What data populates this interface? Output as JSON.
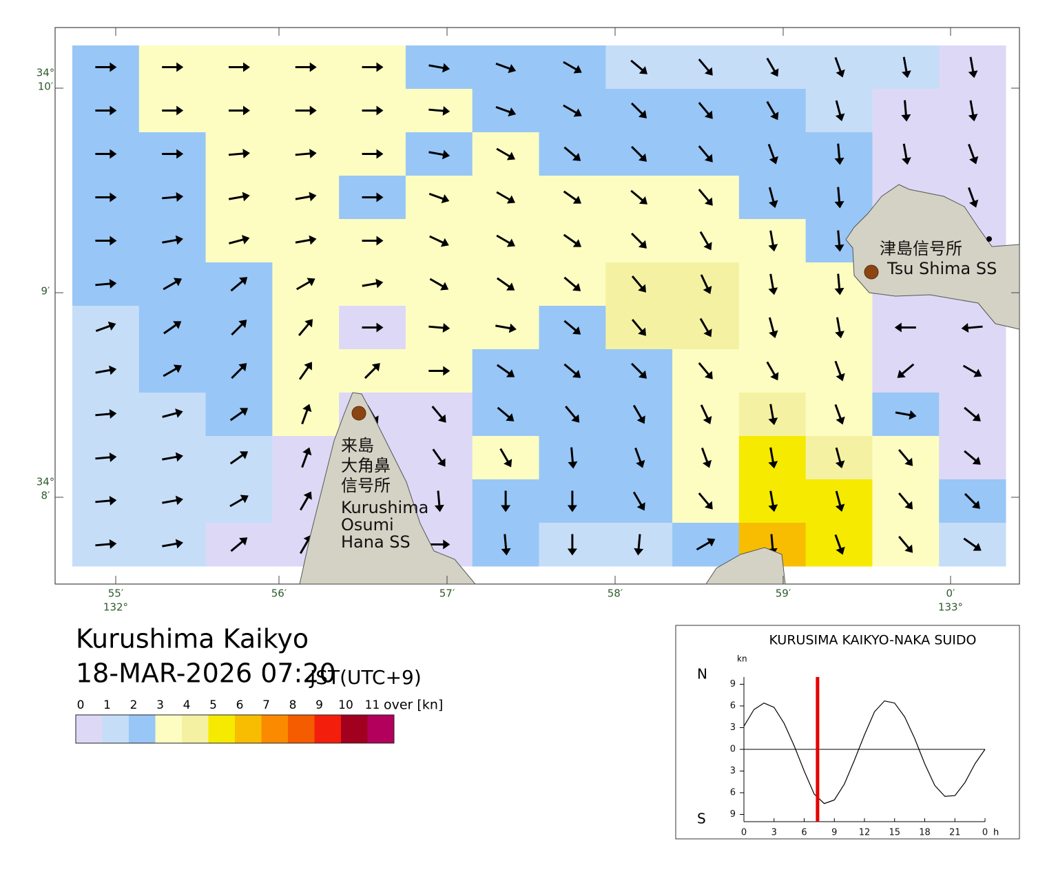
{
  "title": "Kurushima Kaikyo",
  "datetime": "18-MAR-2026 07:20",
  "timezone": "JST(UTC+9)",
  "legend": {
    "ticks": [
      0,
      1,
      2,
      3,
      4,
      5,
      6,
      7,
      8,
      9,
      10,
      11
    ],
    "over": "over [kn]",
    "colors": [
      "#dcd8f6",
      "#c6ddf8",
      "#98c6f6",
      "#fdfdc2",
      "#f4f2a2",
      "#f5ea00",
      "#f8bd00",
      "#fb8a00",
      "#f55c00",
      "#f41e0c",
      "#a1001f",
      "#b2005c"
    ]
  },
  "map": {
    "lat_labels": [
      {
        "deg": "34°",
        "min": "10′"
      },
      {
        "min": "9′"
      },
      {
        "deg": "34°",
        "min": "8′"
      }
    ],
    "lon_labels": [
      {
        "min": "55′",
        "deg": "132°"
      },
      {
        "min": "56′"
      },
      {
        "min": "57′"
      },
      {
        "min": "58′"
      },
      {
        "min": "59′"
      },
      {
        "min": "0′",
        "deg": "133°"
      }
    ],
    "stations": [
      {
        "name_ja": [
          "来島",
          "大角鼻",
          "信号所"
        ],
        "name_en": [
          "Kurushima",
          "Osumi",
          "Hana SS"
        ]
      },
      {
        "name_ja": [
          "津島信号所"
        ],
        "name_en": [
          "Tsu Shima SS"
        ]
      }
    ],
    "speed": [
      [
        2.5,
        3.5,
        3.5,
        3.5,
        3.5,
        2.5,
        2.5,
        2.5,
        1.5,
        1.5,
        1.5,
        1.5,
        1.5,
        0.6
      ],
      [
        2.5,
        3.5,
        3.5,
        3.5,
        3.5,
        3.5,
        2.5,
        2.5,
        2.5,
        2.5,
        2.5,
        1.5,
        0.6,
        0.6
      ],
      [
        2.5,
        2.5,
        3.5,
        3.5,
        3.5,
        2.5,
        3.5,
        2.5,
        2.5,
        2.5,
        2.5,
        2.5,
        0.6,
        0.6
      ],
      [
        2.5,
        2.5,
        3.5,
        3.5,
        2.5,
        3.5,
        3.5,
        3.5,
        3.5,
        3.5,
        2.5,
        2.5,
        0.6,
        0.6
      ],
      [
        2.5,
        2.5,
        3.5,
        3.5,
        3.5,
        3.5,
        3.5,
        3.5,
        3.5,
        3.5,
        3.5,
        2.5,
        0.6,
        0.6
      ],
      [
        2.5,
        2.5,
        2.5,
        3.5,
        3.5,
        3.5,
        3.5,
        3.5,
        4.5,
        4.5,
        3.5,
        3.5,
        0.6,
        0.6
      ],
      [
        1.5,
        2.5,
        2.5,
        3.5,
        0.6,
        3.5,
        3.5,
        2.5,
        4.5,
        4.5,
        3.5,
        3.5,
        0.6,
        0.6
      ],
      [
        1.5,
        2.5,
        2.5,
        3.5,
        3.5,
        3.5,
        2.5,
        2.5,
        2.5,
        3.5,
        3.5,
        3.5,
        0.6,
        0.6
      ],
      [
        1.5,
        1.5,
        2.5,
        3.5,
        0.6,
        0.6,
        2.5,
        2.5,
        2.5,
        3.5,
        4.5,
        3.5,
        2.5,
        0.6
      ],
      [
        1.5,
        1.5,
        1.5,
        0.6,
        0.6,
        0.6,
        3.5,
        2.5,
        2.5,
        3.5,
        5.5,
        4.5,
        3.5,
        0.6
      ],
      [
        1.5,
        1.5,
        1.5,
        0.6,
        0.6,
        0.6,
        2.5,
        2.5,
        2.5,
        3.5,
        5.5,
        5.5,
        3.5,
        2.5
      ],
      [
        1.5,
        1.5,
        0.6,
        0.6,
        0.6,
        0.6,
        2.5,
        1.5,
        1.5,
        2.5,
        6.5,
        5.5,
        3.5,
        1.5
      ]
    ],
    "direction": [
      [
        90,
        90,
        90,
        90,
        90,
        100,
        110,
        120,
        130,
        140,
        150,
        160,
        170,
        170
      ],
      [
        90,
        90,
        90,
        90,
        90,
        95,
        110,
        120,
        135,
        140,
        150,
        165,
        175,
        170
      ],
      [
        90,
        90,
        85,
        85,
        90,
        100,
        120,
        130,
        135,
        140,
        160,
        175,
        170,
        160
      ],
      [
        90,
        85,
        80,
        80,
        90,
        110,
        120,
        125,
        130,
        140,
        165,
        175,
        170,
        160
      ],
      [
        90,
        80,
        75,
        80,
        90,
        115,
        120,
        125,
        135,
        150,
        170,
        175,
        160,
        150
      ],
      [
        85,
        60,
        50,
        60,
        80,
        120,
        125,
        130,
        140,
        155,
        170,
        175,
        170,
        180
      ],
      [
        70,
        55,
        45,
        40,
        90,
        95,
        100,
        130,
        140,
        150,
        165,
        170,
        270,
        265
      ],
      [
        80,
        60,
        45,
        35,
        45,
        90,
        125,
        130,
        135,
        140,
        150,
        160,
        230,
        120
      ],
      [
        85,
        75,
        55,
        20,
        150,
        140,
        130,
        140,
        150,
        155,
        170,
        160,
        100,
        130
      ],
      [
        85,
        80,
        55,
        20,
        150,
        145,
        150,
        175,
        160,
        160,
        170,
        165,
        140,
        130
      ],
      [
        85,
        80,
        60,
        30,
        170,
        175,
        180,
        180,
        150,
        140,
        170,
        165,
        140,
        135
      ],
      [
        85,
        80,
        50,
        30,
        170,
        90,
        175,
        180,
        185,
        60,
        175,
        160,
        140,
        125
      ]
    ]
  },
  "chart_data": {
    "type": "line",
    "title": "KURUSIMA KAIKYO-NAKA SUIDO",
    "y_unit": "kn",
    "x_unit": "h",
    "north": "N",
    "south": "S",
    "x": [
      0,
      1,
      2,
      3,
      4,
      5,
      6,
      7,
      8,
      9,
      10,
      11,
      12,
      13,
      14,
      15,
      16,
      17,
      18,
      19,
      20,
      21,
      22,
      23,
      24
    ],
    "values": [
      3.2,
      5.5,
      6.4,
      5.8,
      3.6,
      0.5,
      -3,
      -6.2,
      -7.5,
      -7,
      -4.8,
      -1.5,
      2,
      5.2,
      6.7,
      6.4,
      4.5,
      1.5,
      -2,
      -5,
      -6.5,
      -6.4,
      -4.6,
      -2,
      0
    ],
    "color": "#000000",
    "marker": {
      "x": 7.33,
      "color": "#e60000"
    },
    "xlim": [
      0,
      24
    ],
    "ylim": [
      -10,
      10
    ],
    "xticks": [
      0,
      3,
      6,
      9,
      12,
      15,
      18,
      21,
      {
        "value": 24,
        "label": "0"
      }
    ],
    "yticks": [
      {
        "value": -9,
        "label": "9"
      },
      {
        "value": -6,
        "label": "6"
      },
      {
        "value": -3,
        "label": "3"
      },
      0,
      3,
      6,
      9
    ]
  }
}
